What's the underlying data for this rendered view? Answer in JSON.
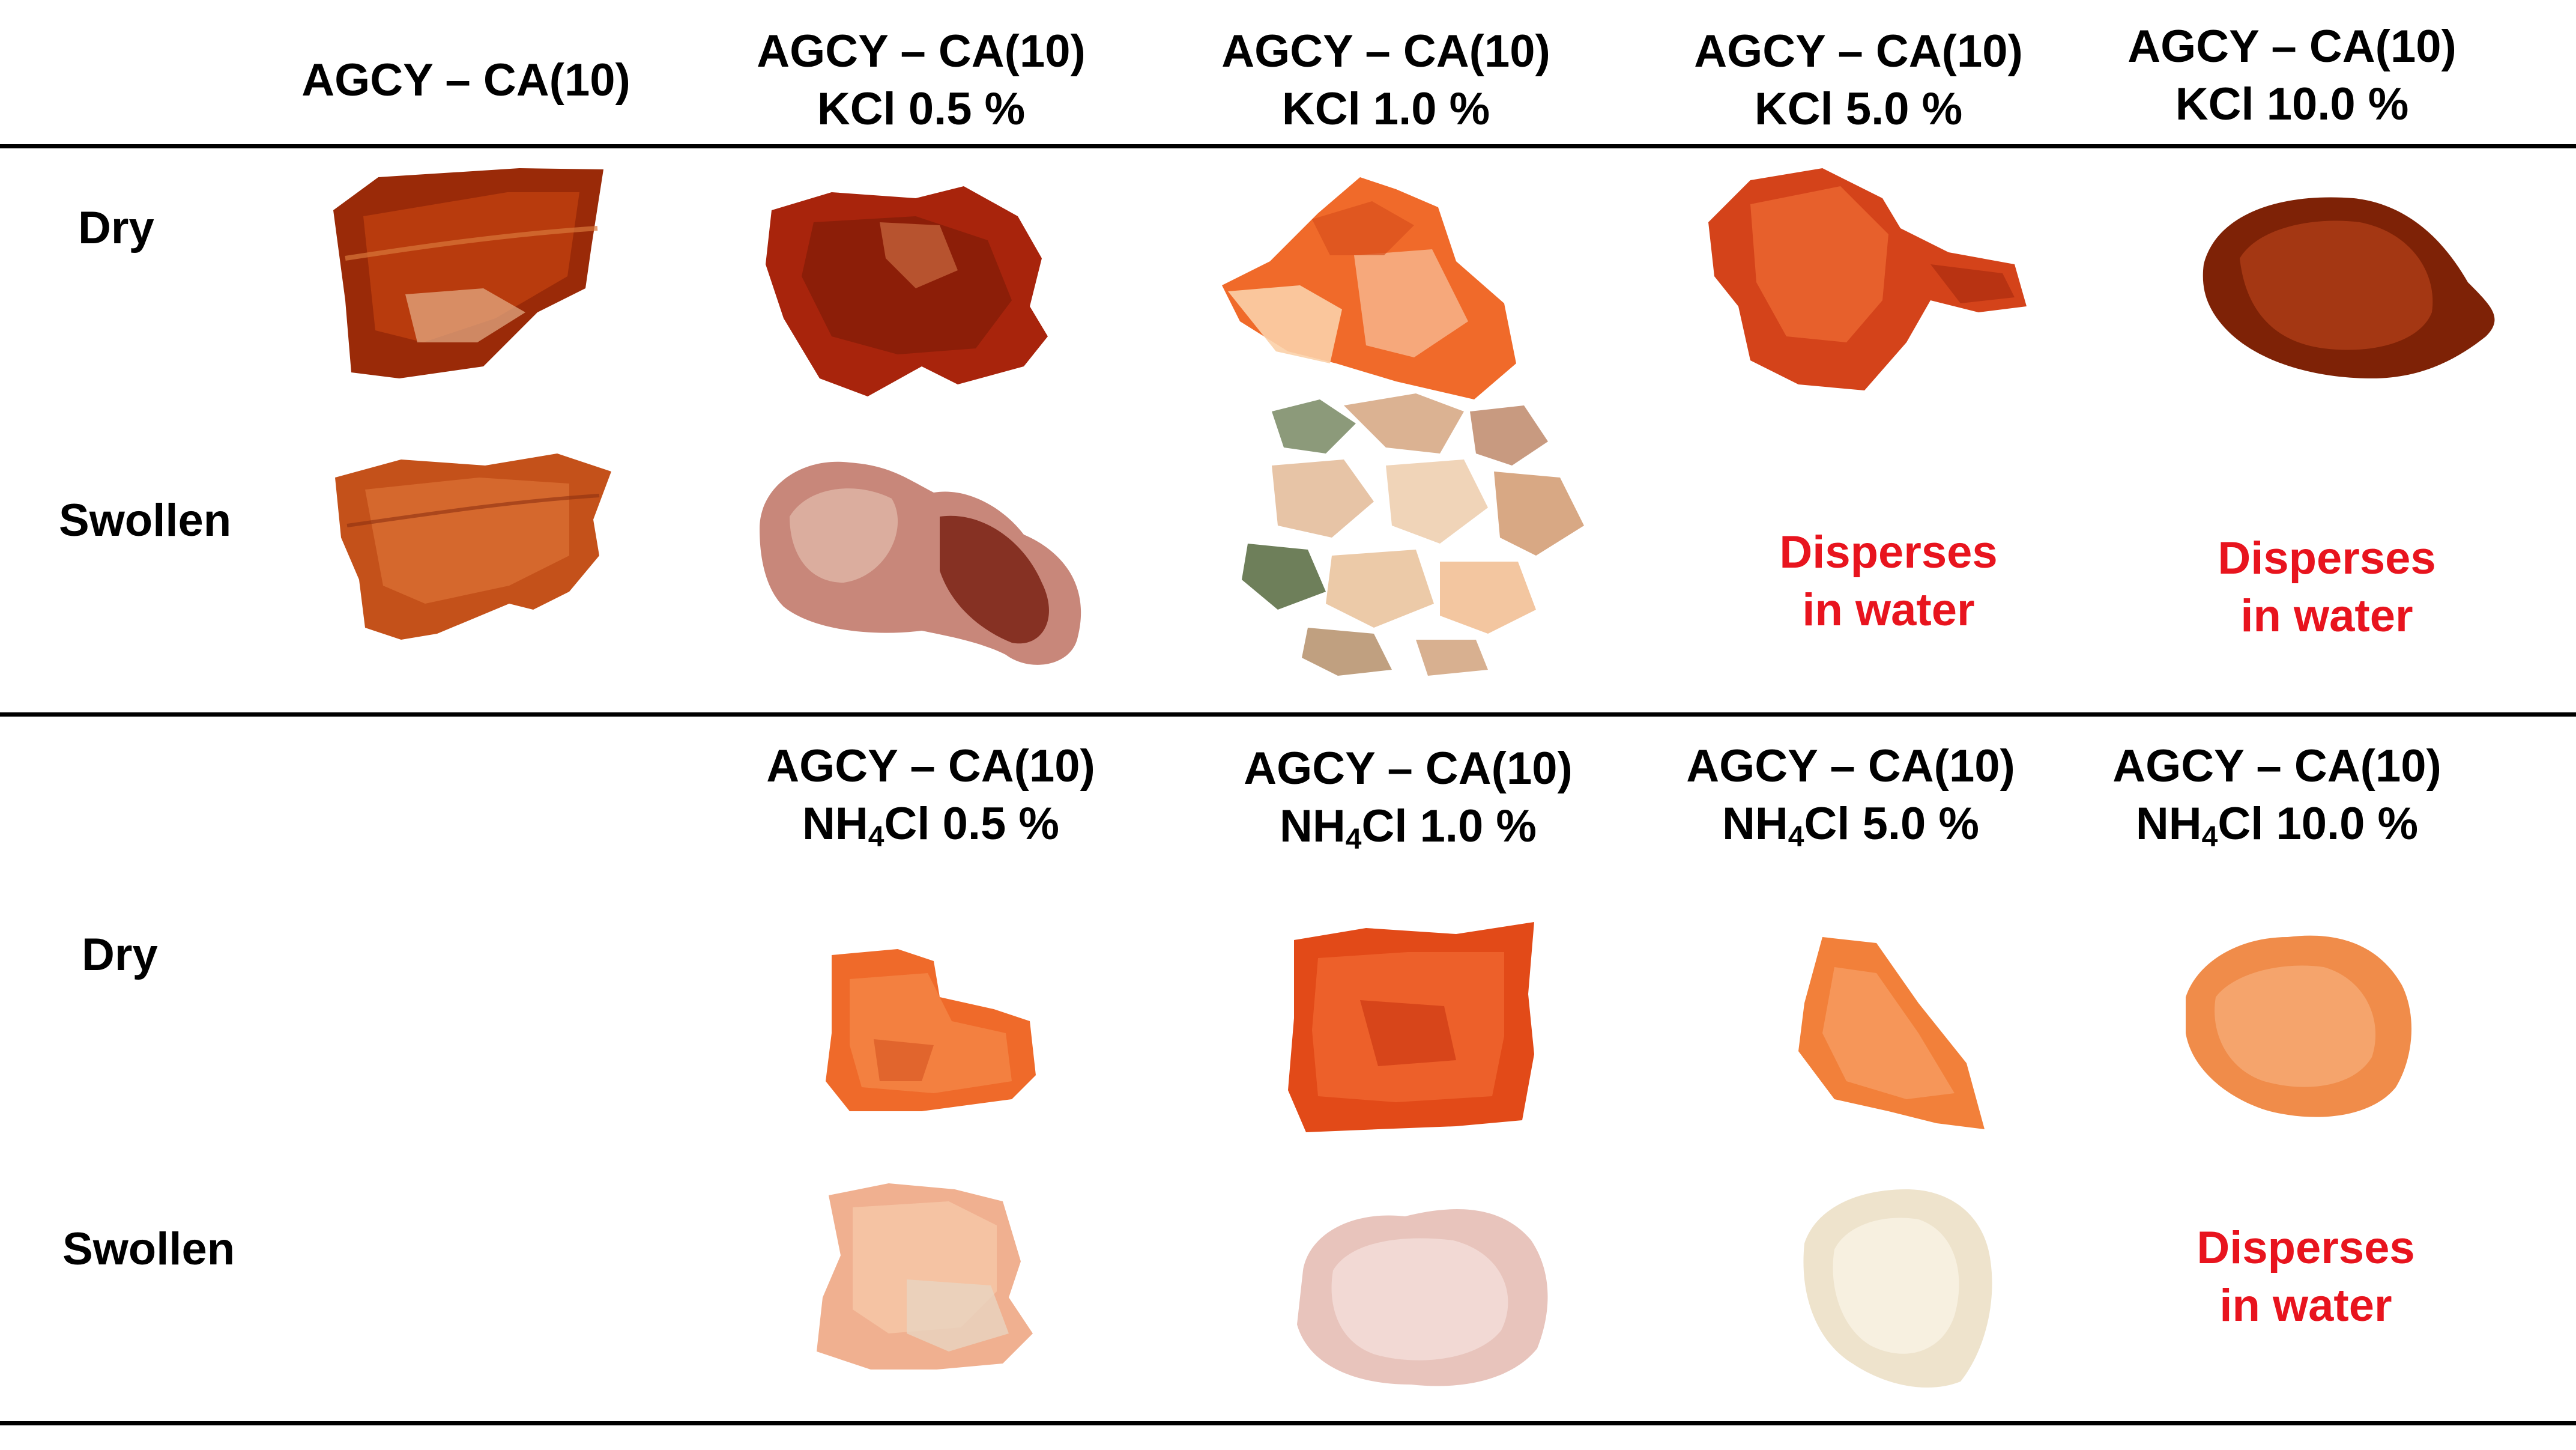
{
  "headers_top": [
    {
      "line1": "AGCY – CA(10)",
      "line2": ""
    },
    {
      "line1": "AGCY – CA(10)",
      "line2": "KCl 0.5 %"
    },
    {
      "line1": "AGCY – CA(10)",
      "line2": "KCl 1.0 %"
    },
    {
      "line1": "AGCY – CA(10)",
      "line2": "KCl 5.0 %"
    },
    {
      "line1": "AGCY – CA(10)",
      "line2": "KCl 10.0 %"
    }
  ],
  "headers_bottom": [
    {
      "line1": "AGCY – CA(10)",
      "line2_pre": "NH",
      "line2_sub": "4",
      "line2_post": "Cl 0.5 %"
    },
    {
      "line1": "AGCY – CA(10)",
      "line2_pre": "NH",
      "line2_sub": "4",
      "line2_post": "Cl 1.0 %"
    },
    {
      "line1": "AGCY – CA(10)",
      "line2_pre": "NH",
      "line2_sub": "4",
      "line2_post": "Cl 5.0 %"
    },
    {
      "line1": "AGCY – CA(10)",
      "line2_pre": "NH",
      "line2_sub": "4",
      "line2_post": "Cl 10.0 %"
    }
  ],
  "row_labels": {
    "dry": "Dry",
    "swollen": "Swollen"
  },
  "disperses_note": {
    "line1": "Disperses",
    "line2": "in water",
    "color": "#e8141e"
  },
  "sample_colors": {
    "dark_amber": "#9a2a08",
    "red_brown": "#a8240c",
    "bright_orange": "#f06a2a",
    "pale_orange": "#f6a070",
    "pink_beige": "#d89080",
    "cream": "#eadfc8",
    "peach": "#f2b08a"
  }
}
